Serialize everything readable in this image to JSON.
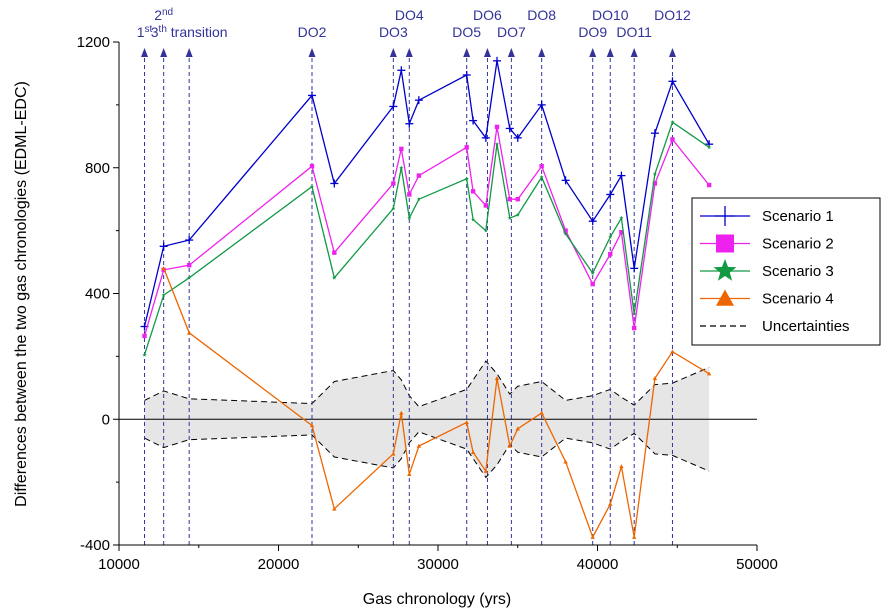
{
  "chart_data": {
    "type": "line",
    "xlabel": "Gas chronology (yrs)",
    "ylabel": "Differences between the two gas chronologies (EDML-EDC)",
    "xlim": [
      10000,
      50000
    ],
    "ylim": [
      -400,
      1200
    ],
    "xticks": [
      10000,
      20000,
      30000,
      40000,
      50000
    ],
    "yticks": [
      -400,
      0,
      400,
      800,
      1200
    ],
    "grid": false,
    "zero_line": true,
    "legend_position": "right",
    "transitions": [
      {
        "x": 11600,
        "label": "1",
        "sup": "st",
        "row": 2
      },
      {
        "x": 12800,
        "label": "2",
        "sup": "nd",
        "row": 1
      },
      {
        "x": 14400,
        "label": "3",
        "sup": "th",
        "after": " transition",
        "row": 2
      },
      {
        "x": 22100,
        "label": "DO2",
        "row": 2
      },
      {
        "x": 27200,
        "label": "DO3",
        "row": 2
      },
      {
        "x": 28200,
        "label": "DO4",
        "row": 1
      },
      {
        "x": 31800,
        "label": "DO5",
        "row": 2
      },
      {
        "x": 33100,
        "label": "DO6",
        "row": 1
      },
      {
        "x": 34600,
        "label": "DO7",
        "row": 2
      },
      {
        "x": 36500,
        "label": "DO8",
        "row": 1
      },
      {
        "x": 39700,
        "label": "DO9",
        "row": 2
      },
      {
        "x": 40800,
        "label": "DO10",
        "row": 1
      },
      {
        "x": 42300,
        "label": "DO11",
        "row": 2
      },
      {
        "x": 44700,
        "label": "DO12",
        "row": 1
      }
    ],
    "series": [
      {
        "name": "Scenario 1",
        "color": "#0000cc",
        "marker": "plus",
        "points": [
          [
            11600,
            295
          ],
          [
            12800,
            550
          ],
          [
            14400,
            570
          ],
          [
            22100,
            1030
          ],
          [
            23500,
            750
          ],
          [
            27200,
            995
          ],
          [
            27700,
            1110
          ],
          [
            28200,
            940
          ],
          [
            28800,
            1015
          ],
          [
            31800,
            1095
          ],
          [
            32200,
            950
          ],
          [
            33000,
            895
          ],
          [
            33700,
            1140
          ],
          [
            34500,
            925
          ],
          [
            35000,
            895
          ],
          [
            36500,
            1000
          ],
          [
            38000,
            760
          ],
          [
            39700,
            630
          ],
          [
            40800,
            715
          ],
          [
            41500,
            775
          ],
          [
            42300,
            480
          ],
          [
            43600,
            910
          ],
          [
            44700,
            1075
          ],
          [
            47000,
            875
          ]
        ]
      },
      {
        "name": "Scenario 2",
        "color": "#ee22ee",
        "marker": "square",
        "points": [
          [
            11600,
            265
          ],
          [
            12800,
            475
          ],
          [
            14400,
            490
          ],
          [
            22100,
            805
          ],
          [
            23500,
            530
          ],
          [
            27200,
            750
          ],
          [
            27700,
            860
          ],
          [
            28200,
            715
          ],
          [
            28800,
            775
          ],
          [
            31800,
            865
          ],
          [
            32200,
            725
          ],
          [
            33000,
            680
          ],
          [
            33700,
            930
          ],
          [
            34500,
            700
          ],
          [
            35000,
            700
          ],
          [
            36500,
            805
          ],
          [
            38000,
            600
          ],
          [
            39700,
            430
          ],
          [
            40800,
            525
          ],
          [
            41500,
            595
          ],
          [
            42300,
            290
          ],
          [
            43600,
            750
          ],
          [
            44700,
            890
          ],
          [
            47000,
            745
          ]
        ]
      },
      {
        "name": "Scenario 3",
        "color": "#119944",
        "marker": "star",
        "points": [
          [
            11600,
            205
          ],
          [
            12800,
            395
          ],
          [
            14400,
            450
          ],
          [
            22100,
            740
          ],
          [
            23500,
            450
          ],
          [
            27200,
            670
          ],
          [
            27700,
            800
          ],
          [
            28200,
            640
          ],
          [
            28800,
            700
          ],
          [
            31800,
            765
          ],
          [
            32200,
            635
          ],
          [
            33000,
            600
          ],
          [
            33700,
            875
          ],
          [
            34500,
            640
          ],
          [
            35000,
            650
          ],
          [
            36500,
            770
          ],
          [
            38000,
            590
          ],
          [
            39700,
            465
          ],
          [
            40800,
            580
          ],
          [
            41500,
            640
          ],
          [
            42300,
            335
          ],
          [
            43600,
            780
          ],
          [
            44700,
            945
          ],
          [
            47000,
            865
          ]
        ]
      },
      {
        "name": "Scenario 4",
        "color": "#ee6600",
        "marker": "triangle",
        "points": [
          [
            12800,
            480
          ],
          [
            14400,
            275
          ],
          [
            22100,
            -20
          ],
          [
            23500,
            -285
          ],
          [
            27200,
            -110
          ],
          [
            27700,
            20
          ],
          [
            28200,
            -175
          ],
          [
            28800,
            -85
          ],
          [
            31800,
            -10
          ],
          [
            32200,
            -105
          ],
          [
            33000,
            -165
          ],
          [
            33700,
            130
          ],
          [
            34500,
            -85
          ],
          [
            35000,
            -30
          ],
          [
            36500,
            20
          ],
          [
            38000,
            -135
          ],
          [
            39700,
            -375
          ],
          [
            40800,
            -270
          ],
          [
            41500,
            -150
          ],
          [
            42300,
            -375
          ],
          [
            43600,
            130
          ],
          [
            44700,
            215
          ],
          [
            47000,
            145
          ]
        ]
      }
    ],
    "uncertainty": {
      "name": "Uncertainties",
      "color": "#000000",
      "fill": "#e6e6e6",
      "x": [
        11600,
        12800,
        14400,
        22100,
        23500,
        27200,
        27700,
        28200,
        28800,
        31800,
        33000,
        33700,
        34500,
        35000,
        36500,
        38000,
        39700,
        40800,
        41500,
        42300,
        43600,
        44700,
        47000
      ],
      "upper": [
        60,
        90,
        65,
        50,
        120,
        155,
        125,
        75,
        40,
        95,
        185,
        145,
        80,
        105,
        120,
        60,
        75,
        95,
        70,
        45,
        110,
        115,
        165
      ],
      "lower": [
        -60,
        -90,
        -65,
        -50,
        -120,
        -155,
        -125,
        -75,
        -40,
        -95,
        -185,
        -145,
        -80,
        -105,
        -120,
        -60,
        -75,
        -95,
        -70,
        -45,
        -110,
        -115,
        -165
      ]
    }
  }
}
